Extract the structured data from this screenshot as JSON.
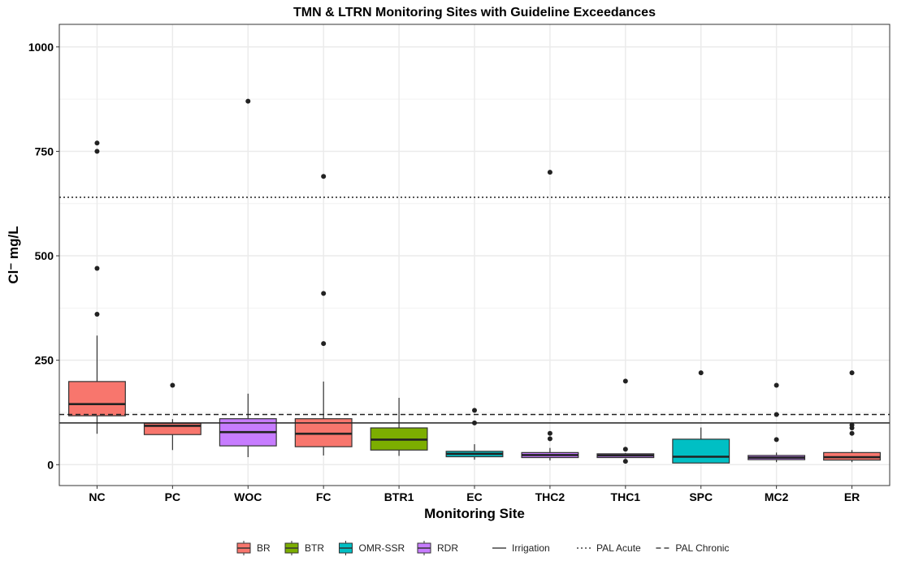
{
  "chart_data": {
    "type": "box",
    "title": "TMN & LTRN Monitoring Sites with Guideline Exceedances",
    "xlabel": "Monitoring Site",
    "ylabel": "Cl⁻ mg/L",
    "ylim": [
      -50,
      1054
    ],
    "yticks": [
      0,
      250,
      500,
      750,
      1000
    ],
    "grid": true,
    "legend_position": "bottom",
    "groups": [
      {
        "name": "BR",
        "color": "#F8766D"
      },
      {
        "name": "BTR",
        "color": "#7CAE00"
      },
      {
        "name": "OMR-SSR",
        "color": "#00BFC4"
      },
      {
        "name": "RDR",
        "color": "#C77CFF"
      }
    ],
    "reference_lines": [
      {
        "name": "Irrigation",
        "value": 100,
        "style": "solid"
      },
      {
        "name": "PAL Acute",
        "value": 640,
        "style": "dotted"
      },
      {
        "name": "PAL Chronic",
        "value": 120,
        "style": "dashed"
      }
    ],
    "categories": [
      "NC",
      "PC",
      "WOC",
      "FC",
      "BTR1",
      "EC",
      "THC2",
      "THC1",
      "SPC",
      "MC2",
      "ER"
    ],
    "boxes": [
      {
        "site": "NC",
        "group": "BR",
        "low": 74,
        "q1": 117,
        "median": 145,
        "q3": 199,
        "high": 309,
        "outliers": [
          770,
          750,
          470,
          360
        ]
      },
      {
        "site": "PC",
        "group": "BR",
        "low": 35,
        "q1": 72,
        "median": 93,
        "q3": 99,
        "high": 109,
        "outliers": [
          190
        ]
      },
      {
        "site": "WOC",
        "group": "RDR",
        "low": 18,
        "q1": 45,
        "median": 78,
        "q3": 110,
        "high": 170,
        "outliers": [
          870
        ]
      },
      {
        "site": "FC",
        "group": "BR",
        "low": 22,
        "q1": 43,
        "median": 74,
        "q3": 110,
        "high": 199,
        "outliers": [
          690,
          410,
          290
        ]
      },
      {
        "site": "BTR1",
        "group": "BTR",
        "low": 21,
        "q1": 35,
        "median": 60,
        "q3": 88,
        "high": 160,
        "outliers": []
      },
      {
        "site": "EC",
        "group": "OMR-SSR",
        "low": 12,
        "q1": 19,
        "median": 26,
        "q3": 32,
        "high": 49,
        "outliers": [
          130,
          100
        ]
      },
      {
        "site": "THC2",
        "group": "RDR",
        "low": 10,
        "q1": 17,
        "median": 23,
        "q3": 29,
        "high": 40,
        "outliers": [
          700,
          75,
          62
        ]
      },
      {
        "site": "THC1",
        "group": "RDR",
        "low": 15,
        "q1": 17,
        "median": 22,
        "q3": 26,
        "high": 28,
        "outliers": [
          200,
          37,
          8
        ]
      },
      {
        "site": "SPC",
        "group": "OMR-SSR",
        "low": 3,
        "q1": 4,
        "median": 19,
        "q3": 61,
        "high": 89,
        "outliers": [
          220
        ]
      },
      {
        "site": "MC2",
        "group": "RDR",
        "low": 6,
        "q1": 12,
        "median": 17,
        "q3": 22,
        "high": 29,
        "outliers": [
          190,
          120,
          60
        ]
      },
      {
        "site": "ER",
        "group": "BR",
        "low": 6,
        "q1": 11,
        "median": 18,
        "q3": 29,
        "high": 35,
        "outliers": [
          220,
          95,
          88,
          75
        ]
      }
    ]
  }
}
